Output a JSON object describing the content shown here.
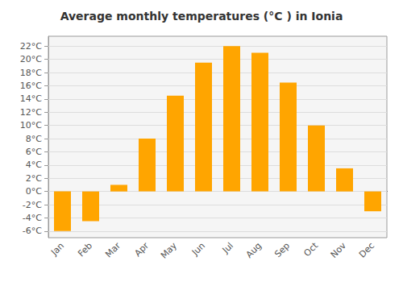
{
  "chart_data": {
    "type": "bar",
    "title": "Average monthly temperatures (°C ) in Ionia",
    "categories": [
      "Jan",
      "Feb",
      "Mar",
      "Apr",
      "May",
      "Jun",
      "Jul",
      "Aug",
      "Sep",
      "Oct",
      "Nov",
      "Dec"
    ],
    "values": [
      -6,
      -4.5,
      1,
      8,
      14.5,
      19.5,
      22,
      21,
      16.5,
      10,
      3.5,
      -3
    ],
    "color": "#FFA500",
    "ylim": [
      -7,
      23.5
    ],
    "yticks": [
      {
        "value": -6,
        "label": "-6°C"
      },
      {
        "value": -4,
        "label": "-4°C"
      },
      {
        "value": -2,
        "label": "-2°C"
      },
      {
        "value": 0,
        "label": "0°C"
      },
      {
        "value": 2,
        "label": "2°C"
      },
      {
        "value": 4,
        "label": "4°C"
      },
      {
        "value": 6,
        "label": "6°C"
      },
      {
        "value": 8,
        "label": "8°C"
      },
      {
        "value": 10,
        "label": "10°C"
      },
      {
        "value": 12,
        "label": "12°C"
      },
      {
        "value": 14,
        "label": "14°C"
      },
      {
        "value": 16,
        "label": "16°C"
      },
      {
        "value": 18,
        "label": "18°C"
      },
      {
        "value": 20,
        "label": "20°C"
      },
      {
        "value": 22,
        "label": "22°C"
      }
    ],
    "grid": true
  }
}
